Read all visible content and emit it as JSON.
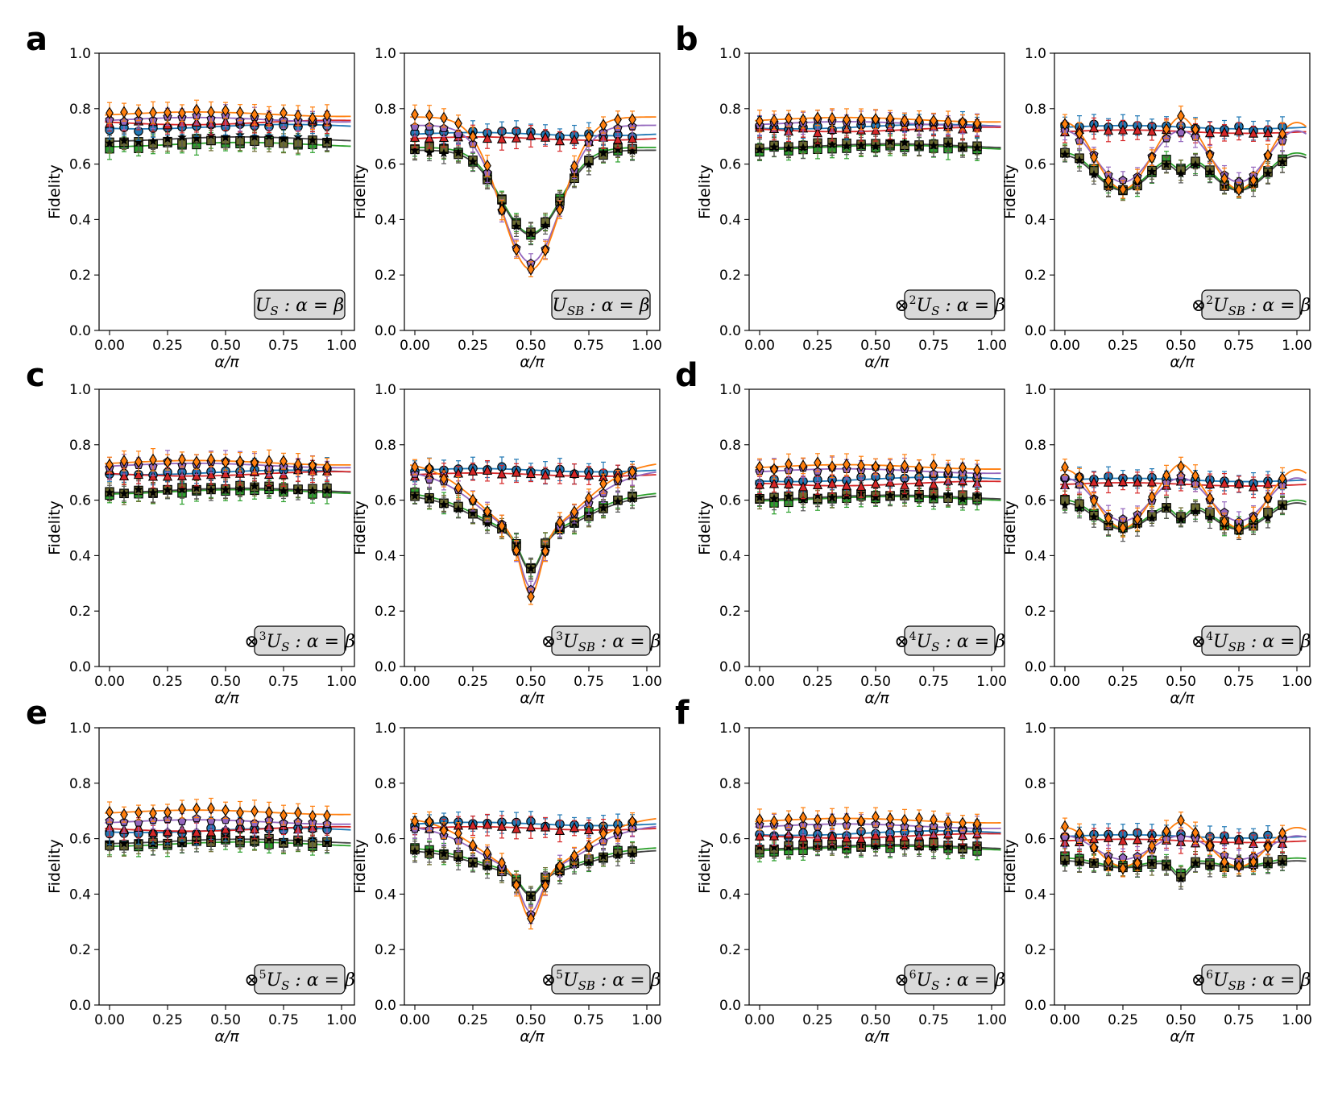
{
  "figure": {
    "panel_letters": [
      "a",
      "b",
      "c",
      "d",
      "e",
      "f"
    ],
    "y_axis_label": "Fidelity",
    "x_axis_label": "α/π",
    "colors": {
      "blue": "#1f77b4",
      "orange": "#ff7f0e",
      "green": "#2ca02c",
      "red": "#d62728",
      "purple": "#9467bd",
      "olive": "#6b6b2f",
      "black": "#000000"
    }
  },
  "chart_data": [
    {
      "panel": "a",
      "type": "scatter",
      "label": "U_S : α = β",
      "label_parts": {
        "prefix": "",
        "op": "U",
        "sub": "S",
        "tail": " : α = β"
      },
      "xlabel": "α/π",
      "ylabel": "Fidelity",
      "xlim": [
        0,
        1
      ],
      "ylim": [
        0,
        1
      ],
      "xticks": [
        "0.00",
        "0.25",
        "0.50",
        "0.75",
        "1.00"
      ],
      "yticks": [
        "0.0",
        "0.2",
        "0.4",
        "0.6",
        "0.8",
        "1.0"
      ],
      "grid": false,
      "profile": "flat",
      "levels": {
        "orange": 0.78,
        "purple": 0.76,
        "red": 0.75,
        "blue": 0.735,
        "black": 0.69,
        "green": 0.67
      }
    },
    {
      "panel": "a",
      "type": "scatter",
      "label": "U_SB : α = β",
      "label_parts": {
        "prefix": "",
        "op": "U",
        "sub": "SB",
        "tail": " : α = β"
      },
      "xlabel": "α/π",
      "ylabel": "Fidelity",
      "xlim": [
        0,
        1
      ],
      "ylim": [
        0,
        1
      ],
      "xticks": [
        "0.00",
        "0.25",
        "0.50",
        "0.75",
        "1.00"
      ],
      "yticks": [
        "0.0",
        "0.2",
        "0.4",
        "0.6",
        "0.8",
        "1.0"
      ],
      "grid": false,
      "profile": "dip1",
      "flat_level": 0.7,
      "top": 0.76,
      "deep_min": 0.22,
      "shallow_min": 0.35
    },
    {
      "panel": "b",
      "type": "scatter",
      "label": "⊗²U_S : α = β",
      "label_parts": {
        "prefix": "⊗",
        "power": "2",
        "op": "U",
        "sub": "S",
        "tail": " : α = β"
      },
      "xlabel": "α/π",
      "ylabel": "Fidelity",
      "xlim": [
        0,
        1
      ],
      "ylim": [
        0,
        1
      ],
      "xticks": [
        "0.00",
        "0.25",
        "0.50",
        "0.75",
        "1.00"
      ],
      "yticks": [
        "0.0",
        "0.2",
        "0.4",
        "0.6",
        "0.8",
        "1.0"
      ],
      "grid": false,
      "profile": "flat",
      "levels": {
        "orange": 0.76,
        "purple": 0.745,
        "blue": 0.735,
        "red": 0.725,
        "black": 0.665,
        "green": 0.66
      }
    },
    {
      "panel": "b",
      "type": "scatter",
      "label": "⊗²U_SB : α = β",
      "label_parts": {
        "prefix": "⊗",
        "power": "2",
        "op": "U",
        "sub": "SB",
        "tail": " : α = β"
      },
      "xlabel": "α/π",
      "ylabel": "Fidelity",
      "xlim": [
        0,
        1
      ],
      "ylim": [
        0,
        1
      ],
      "xticks": [
        "0.00",
        "0.25",
        "0.50",
        "0.75",
        "1.00"
      ],
      "yticks": [
        "0.0",
        "0.2",
        "0.4",
        "0.6",
        "0.8",
        "1.0"
      ],
      "grid": false,
      "profile": "dip2",
      "flat_level": 0.725,
      "top": 0.74,
      "deep_min": 0.51,
      "shallow_min": 0.51
    },
    {
      "panel": "c",
      "type": "scatter",
      "label": "⊗³U_S : α = β",
      "label_parts": {
        "prefix": "⊗",
        "power": "3",
        "op": "U",
        "sub": "S",
        "tail": " : α = β"
      },
      "xlabel": "α/π",
      "ylabel": "Fidelity",
      "xlim": [
        0,
        1
      ],
      "ylim": [
        0,
        1
      ],
      "xticks": [
        "0.00",
        "0.25",
        "0.50",
        "0.75",
        "1.00"
      ],
      "yticks": [
        "0.0",
        "0.2",
        "0.4",
        "0.6",
        "0.8",
        "1.0"
      ],
      "grid": false,
      "profile": "flat",
      "levels": {
        "orange": 0.735,
        "purple": 0.725,
        "blue": 0.7,
        "red": 0.695,
        "black": 0.635,
        "green": 0.63
      }
    },
    {
      "panel": "c",
      "type": "scatter",
      "label": "⊗³U_SB : α = β",
      "label_parts": {
        "prefix": "⊗",
        "power": "3",
        "op": "U",
        "sub": "SB",
        "tail": " : α = β"
      },
      "xlabel": "α/π",
      "ylabel": "Fidelity",
      "xlim": [
        0,
        1
      ],
      "ylim": [
        0,
        1
      ],
      "xticks": [
        "0.00",
        "0.25",
        "0.50",
        "0.75",
        "1.00"
      ],
      "yticks": [
        "0.0",
        "0.2",
        "0.4",
        "0.6",
        "0.8",
        "1.0"
      ],
      "grid": false,
      "profile": "dip3",
      "flat_level": 0.7,
      "top": 0.73,
      "deep_min": 0.26,
      "shallow_min": 0.35
    },
    {
      "panel": "d",
      "type": "scatter",
      "label": "⊗⁴U_S : α = β",
      "label_parts": {
        "prefix": "⊗",
        "power": "4",
        "op": "U",
        "sub": "S",
        "tail": " : α = β"
      },
      "xlabel": "α/π",
      "ylabel": "Fidelity",
      "xlim": [
        0,
        1
      ],
      "ylim": [
        0,
        1
      ],
      "xticks": [
        "0.00",
        "0.25",
        "0.50",
        "0.75",
        "1.00"
      ],
      "yticks": [
        "0.0",
        "0.2",
        "0.4",
        "0.6",
        "0.8",
        "1.0"
      ],
      "grid": false,
      "profile": "flat",
      "levels": {
        "orange": 0.72,
        "purple": 0.705,
        "blue": 0.675,
        "red": 0.66,
        "black": 0.61,
        "green": 0.605
      }
    },
    {
      "panel": "d",
      "type": "scatter",
      "label": "⊗⁴U_SB : α = β",
      "label_parts": {
        "prefix": "⊗",
        "power": "4",
        "op": "U",
        "sub": "SB",
        "tail": " : α = β"
      },
      "xlabel": "α/π",
      "ylabel": "Fidelity",
      "xlim": [
        0,
        1
      ],
      "ylim": [
        0,
        1
      ],
      "xticks": [
        "0.00",
        "0.25",
        "0.50",
        "0.75",
        "1.00"
      ],
      "yticks": [
        "0.0",
        "0.2",
        "0.4",
        "0.6",
        "0.8",
        "1.0"
      ],
      "grid": false,
      "profile": "dip2",
      "flat_level": 0.665,
      "top": 0.7,
      "deep_min": 0.5,
      "shallow_min": 0.5
    },
    {
      "panel": "e",
      "type": "scatter",
      "label": "⊗⁵U_S : α = β",
      "label_parts": {
        "prefix": "⊗",
        "power": "5",
        "op": "U",
        "sub": "S",
        "tail": " : α = β"
      },
      "xlabel": "α/π",
      "ylabel": "Fidelity",
      "xlim": [
        0,
        1
      ],
      "ylim": [
        0,
        1
      ],
      "xticks": [
        "0.00",
        "0.25",
        "0.50",
        "0.75",
        "1.00"
      ],
      "yticks": [
        "0.0",
        "0.2",
        "0.4",
        "0.6",
        "0.8",
        "1.0"
      ],
      "grid": false,
      "profile": "flat",
      "levels": {
        "orange": 0.695,
        "purple": 0.66,
        "red": 0.635,
        "blue": 0.63,
        "black": 0.59,
        "green": 0.58
      }
    },
    {
      "panel": "e",
      "type": "scatter",
      "label": "⊗⁵U_SB : α = β",
      "label_parts": {
        "prefix": "⊗",
        "power": "5",
        "op": "U",
        "sub": "SB",
        "tail": " : α = β"
      },
      "xlabel": "α/π",
      "ylabel": "Fidelity",
      "xlim": [
        0,
        1
      ],
      "ylim": [
        0,
        1
      ],
      "xticks": [
        "0.00",
        "0.25",
        "0.50",
        "0.75",
        "1.00"
      ],
      "yticks": [
        "0.0",
        "0.2",
        "0.4",
        "0.6",
        "0.8",
        "1.0"
      ],
      "grid": false,
      "profile": "dip3",
      "flat_level": 0.645,
      "top": 0.67,
      "deep_min": 0.31,
      "shallow_min": 0.4
    },
    {
      "panel": "f",
      "type": "scatter",
      "label": "⊗⁶U_S : α = β",
      "label_parts": {
        "prefix": "⊗",
        "power": "6",
        "op": "U",
        "sub": "S",
        "tail": " : α = β"
      },
      "xlabel": "α/π",
      "ylabel": "Fidelity",
      "xlim": [
        0,
        1
      ],
      "ylim": [
        0,
        1
      ],
      "xticks": [
        "0.00",
        "0.25",
        "0.50",
        "0.75",
        "1.00"
      ],
      "yticks": [
        "0.0",
        "0.2",
        "0.4",
        "0.6",
        "0.8",
        "1.0"
      ],
      "grid": false,
      "profile": "flat",
      "levels": {
        "orange": 0.665,
        "purple": 0.645,
        "blue": 0.62,
        "red": 0.61,
        "black": 0.57,
        "green": 0.565
      }
    },
    {
      "panel": "f",
      "type": "scatter",
      "label": "⊗⁶U_SB : α = β",
      "label_parts": {
        "prefix": "⊗",
        "power": "6",
        "op": "U",
        "sub": "SB",
        "tail": " : α = β"
      },
      "xlabel": "α/π",
      "ylabel": "Fidelity",
      "xlim": [
        0,
        1
      ],
      "ylim": [
        0,
        1
      ],
      "xticks": [
        "0.00",
        "0.25",
        "0.50",
        "0.75",
        "1.00"
      ],
      "yticks": [
        "0.0",
        "0.2",
        "0.4",
        "0.6",
        "0.8",
        "1.0"
      ],
      "grid": false,
      "profile": "dip2",
      "flat_level": 0.6,
      "top": 0.63,
      "deep_min": 0.5,
      "shallow_min": 0.5
    }
  ]
}
